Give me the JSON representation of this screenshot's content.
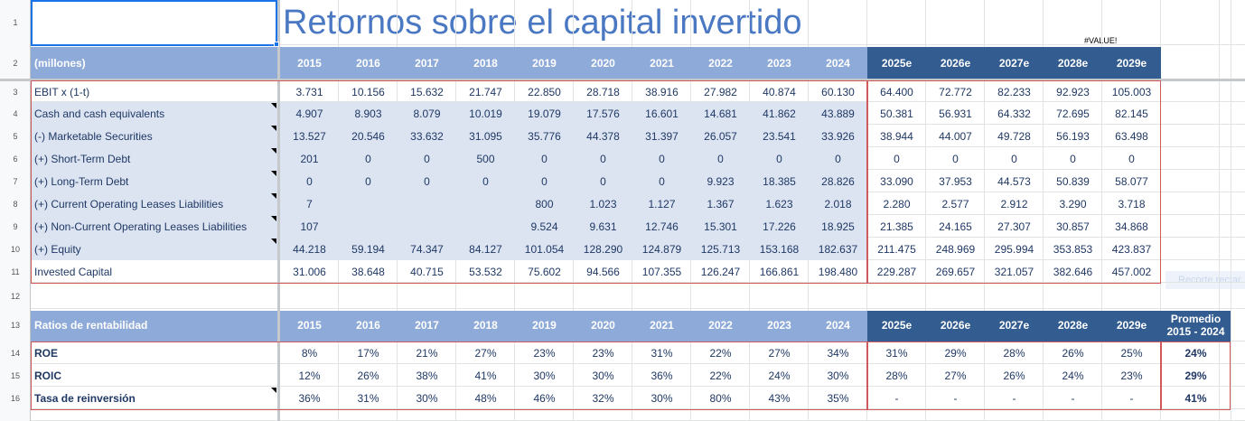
{
  "sheet": {
    "row_numbers": [
      1,
      2,
      3,
      4,
      5,
      6,
      7,
      8,
      9,
      10,
      11,
      12,
      13,
      14,
      15,
      16
    ]
  },
  "title": "Retornos sobre el capital invertido",
  "error_note": "#VALUE!",
  "overlay_hint": "Recorte rectar",
  "financials": {
    "header": "(millones)",
    "columns": [
      "2015",
      "2016",
      "2017",
      "2018",
      "2019",
      "2020",
      "2021",
      "2022",
      "2023",
      "2024",
      "2025e",
      "2026e",
      "2027e",
      "2028e",
      "2029e"
    ],
    "rows": [
      {
        "label": "EBIT x (1-t)",
        "values": [
          "3.731",
          "10.156",
          "15.632",
          "21.747",
          "22.850",
          "28.718",
          "38.916",
          "27.982",
          "40.874",
          "60.130",
          "64.400",
          "72.772",
          "82.233",
          "92.923",
          "105.003"
        ]
      },
      {
        "label": "Cash and cash equivalents",
        "values": [
          "4.907",
          "8.903",
          "8.079",
          "10.019",
          "19.079",
          "17.576",
          "16.601",
          "14.681",
          "41.862",
          "43.889",
          "50.381",
          "56.931",
          "64.332",
          "72.695",
          "82.145"
        ]
      },
      {
        "label": "(-) Marketable Securities",
        "values": [
          "13.527",
          "20.546",
          "33.632",
          "31.095",
          "35.776",
          "44.378",
          "31.397",
          "26.057",
          "23.541",
          "33.926",
          "38.944",
          "44.007",
          "49.728",
          "56.193",
          "63.498"
        ]
      },
      {
        "label": "(+) Short-Term Debt",
        "values": [
          "201",
          "0",
          "0",
          "500",
          "0",
          "0",
          "0",
          "0",
          "0",
          "0",
          "0",
          "0",
          "0",
          "0",
          "0"
        ]
      },
      {
        "label": "(+) Long-Term Debt",
        "values": [
          "0",
          "0",
          "0",
          "0",
          "0",
          "0",
          "0",
          "9.923",
          "18.385",
          "28.826",
          "33.090",
          "37.953",
          "44.573",
          "50.839",
          "58.077"
        ]
      },
      {
        "label": "(+) Current Operating Leases Liabilities",
        "values": [
          "7",
          null,
          null,
          null,
          "800",
          "1.023",
          "1.127",
          "1.367",
          "1.623",
          "2.018",
          "2.280",
          "2.577",
          "2.912",
          "3.290",
          "3.718"
        ]
      },
      {
        "label": "(+) Non-Current Operating Leases Liabilities",
        "values": [
          "107",
          null,
          null,
          null,
          "9.524",
          "9.631",
          "12.746",
          "15.301",
          "17.226",
          "18.925",
          "21.385",
          "24.165",
          "27.307",
          "30.857",
          "34.868"
        ]
      },
      {
        "label": "(+) Equity",
        "values": [
          "44.218",
          "59.194",
          "74.347",
          "84.127",
          "101.054",
          "128.290",
          "124.879",
          "125.713",
          "153.168",
          "182.637",
          "211.475",
          "248.969",
          "295.994",
          "353.853",
          "423.837"
        ]
      },
      {
        "label": "Invested Capital",
        "values": [
          "31.006",
          "38.648",
          "40.715",
          "53.532",
          "75.602",
          "94.566",
          "107.355",
          "126.247",
          "166.861",
          "198.480",
          "229.287",
          "269.657",
          "321.057",
          "382.646",
          "457.002"
        ]
      }
    ]
  },
  "ratios": {
    "header": "Ratios de rentabilidad",
    "columns": [
      "2015",
      "2016",
      "2017",
      "2018",
      "2019",
      "2020",
      "2021",
      "2022",
      "2023",
      "2024",
      "2025e",
      "2026e",
      "2027e",
      "2028e",
      "2029e"
    ],
    "average_header": [
      "Promedio",
      "2015 - 2024"
    ],
    "rows": [
      {
        "label": "ROE",
        "values": [
          "8%",
          "17%",
          "21%",
          "27%",
          "23%",
          "23%",
          "31%",
          "22%",
          "27%",
          "34%",
          "31%",
          "29%",
          "28%",
          "26%",
          "25%"
        ],
        "average": "24%"
      },
      {
        "label": "ROIC",
        "values": [
          "12%",
          "26%",
          "38%",
          "41%",
          "30%",
          "30%",
          "36%",
          "22%",
          "24%",
          "30%",
          "28%",
          "27%",
          "26%",
          "24%",
          "23%"
        ],
        "average": "29%"
      },
      {
        "label": "Tasa de reinversión",
        "values": [
          "36%",
          "31%",
          "30%",
          "48%",
          "46%",
          "32%",
          "30%",
          "80%",
          "43%",
          "35%",
          "-",
          "-",
          "-",
          "-",
          "-"
        ],
        "average": "41%"
      }
    ]
  }
}
